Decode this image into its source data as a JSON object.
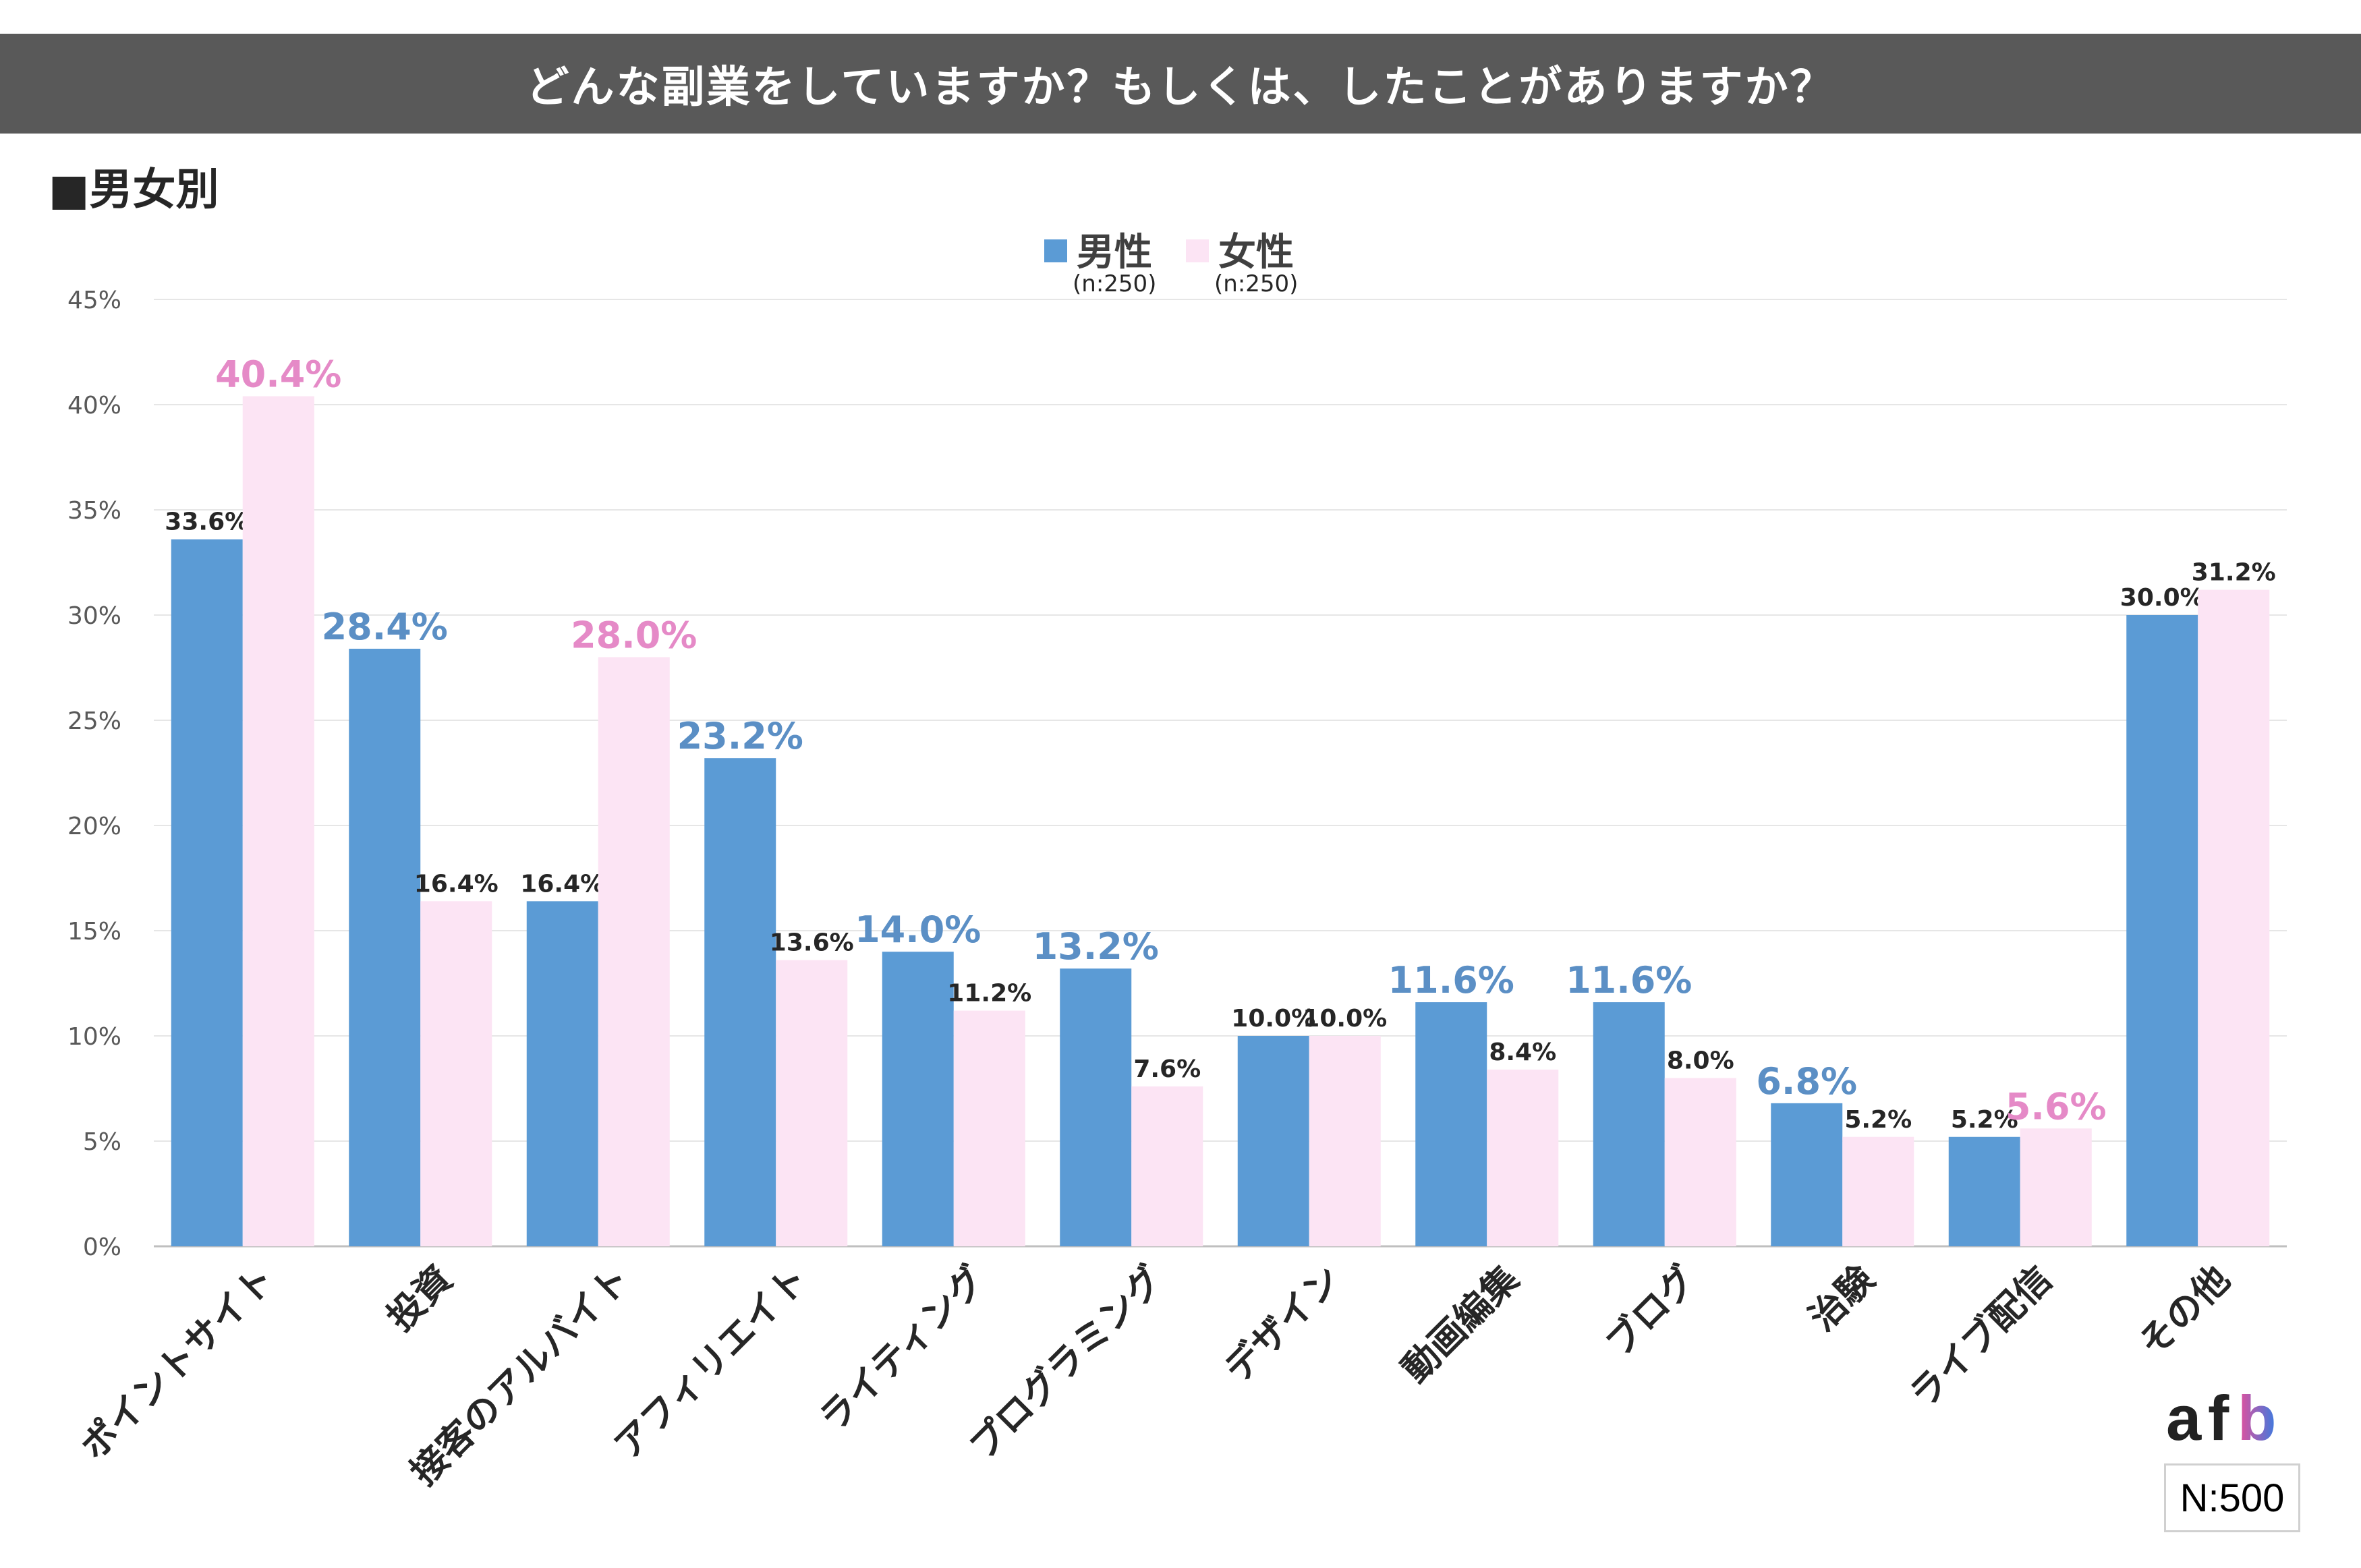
{
  "title": "どんな副業をしていますか？もしくは、したことがありますか？",
  "section_label": "■男女別",
  "sample_size": "N:500",
  "logo_text": "afb",
  "colors": {
    "male": "#5b9bd5",
    "female": "#fce4f4",
    "male_highlight": "#5b8fc5",
    "female_highlight": "#e58ac7",
    "label_default": "#262626"
  },
  "chart_data": {
    "type": "bar",
    "title": "どんな副業をしていますか？もしくは、したことがありますか？",
    "ylim": [
      0,
      45
    ],
    "yticks": [
      "0%",
      "5%",
      "10%",
      "15%",
      "20%",
      "25%",
      "30%",
      "35%",
      "40%",
      "45%"
    ],
    "categories": [
      "ポイントサイト",
      "投資",
      "接客のアルバイト",
      "アフィリエイト",
      "ライティング",
      "プログラミング",
      "デザイン",
      "動画編集",
      "ブログ",
      "治験",
      "ライブ配信",
      "その他"
    ],
    "series": [
      {
        "name": "男性",
        "n_label": "(n:250)",
        "values": [
          33.6,
          28.4,
          16.4,
          23.2,
          14.0,
          13.2,
          10.0,
          11.6,
          11.6,
          6.8,
          5.2,
          30.0
        ],
        "labels": [
          "33.6%",
          "28.4%",
          "16.4%",
          "23.2%",
          "14.0%",
          "13.2%",
          "10.0%",
          "11.6%",
          "11.6%",
          "6.8%",
          "5.2%",
          "30.0%"
        ],
        "highlight": [
          false,
          true,
          false,
          true,
          true,
          true,
          false,
          true,
          true,
          true,
          false,
          false
        ]
      },
      {
        "name": "女性",
        "n_label": "(n:250)",
        "values": [
          40.4,
          16.4,
          28.0,
          13.6,
          11.2,
          7.6,
          10.0,
          8.4,
          8.0,
          5.2,
          5.6,
          31.2
        ],
        "labels": [
          "40.4%",
          "16.4%",
          "28.0%",
          "13.6%",
          "11.2%",
          "7.6%",
          "10.0%",
          "8.4%",
          "8.0%",
          "5.2%",
          "5.6%",
          "31.2%"
        ],
        "highlight": [
          true,
          false,
          true,
          false,
          false,
          false,
          false,
          false,
          false,
          false,
          true,
          false
        ]
      }
    ],
    "legend_position": "top-center",
    "grid": true
  }
}
